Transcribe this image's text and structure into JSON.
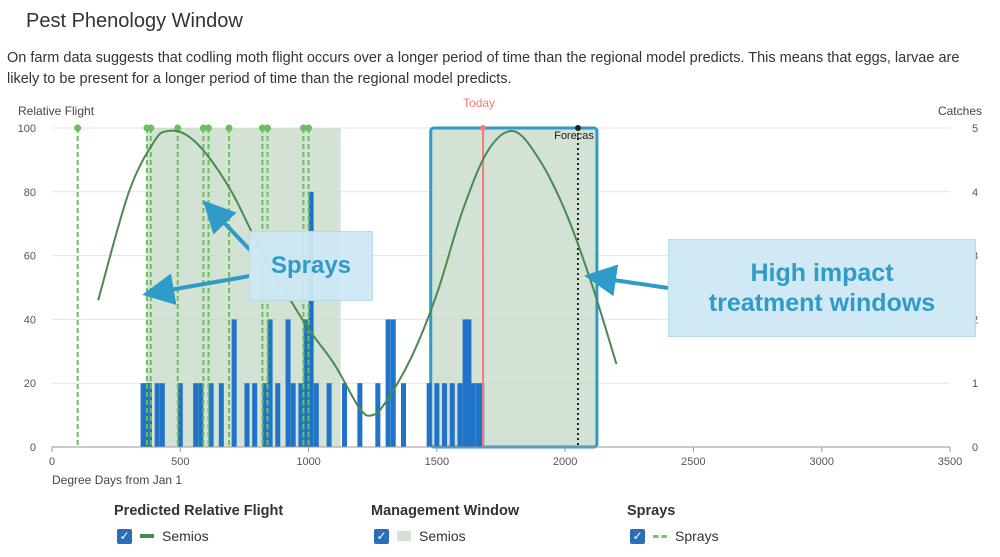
{
  "page": {
    "title": "Pest Phenology Window",
    "description": "On farm data suggests that codling moth flight occurs over a longer period of time than the regional model predicts. This means that eggs, larvae are likely to be present for a longer period of time than the regional model predicts."
  },
  "callouts": {
    "sprays": "Sprays",
    "treatment": "High impact treatment windows"
  },
  "legend": {
    "groups": [
      {
        "title": "Predicted Relative Flight",
        "item": "Semios",
        "color": "#4a8a52",
        "style": "solid"
      },
      {
        "title": "Management Window",
        "item": "Semios",
        "color": "#d4e2d6",
        "style": "block"
      },
      {
        "title": "Sprays",
        "item": "Sprays",
        "color": "#7cc46c",
        "style": "dashed"
      }
    ]
  },
  "chart_data": {
    "type": "line",
    "xlabel": "Degree Days from Jan 1",
    "ylabel": "Relative Flight",
    "y2label": "Catches",
    "xlim": [
      0,
      3500
    ],
    "ylim": [
      0,
      100
    ],
    "y2lim": [
      0,
      5
    ],
    "x_ticks": [
      0,
      500,
      1000,
      1500,
      2000,
      2500,
      3000,
      3500
    ],
    "y_ticks": [
      0,
      20,
      40,
      60,
      80,
      100
    ],
    "y2_ticks": [
      0,
      1,
      2,
      3,
      4,
      5
    ],
    "grid": true,
    "today": {
      "label": "Today",
      "x": 1680
    },
    "forecast": {
      "label": "Forecas",
      "x": 2050
    },
    "management_windows": [
      {
        "start": 370,
        "end": 1125
      },
      {
        "start": 1480,
        "end": 2120
      }
    ],
    "predicted_flight": [
      [
        180,
        46
      ],
      [
        300,
        80
      ],
      [
        400,
        96
      ],
      [
        450,
        99
      ],
      [
        520,
        98
      ],
      [
        600,
        92
      ],
      [
        700,
        80
      ],
      [
        800,
        64
      ],
      [
        900,
        50
      ],
      [
        1000,
        37
      ],
      [
        1100,
        26
      ],
      [
        1200,
        12
      ],
      [
        1250,
        10
      ],
      [
        1300,
        14
      ],
      [
        1400,
        28
      ],
      [
        1500,
        48
      ],
      [
        1600,
        74
      ],
      [
        1700,
        93
      ],
      [
        1800,
        99
      ],
      [
        1900,
        90
      ],
      [
        2000,
        74
      ],
      [
        2100,
        52
      ],
      [
        2200,
        26
      ]
    ],
    "sprays_x": [
      100,
      370,
      385,
      490,
      590,
      610,
      690,
      820,
      840,
      980,
      1000
    ],
    "catches": [
      {
        "x": 355,
        "v": 1
      },
      {
        "x": 368,
        "v": 1
      },
      {
        "x": 380,
        "v": 1
      },
      {
        "x": 410,
        "v": 1
      },
      {
        "x": 430,
        "v": 1
      },
      {
        "x": 500,
        "v": 1
      },
      {
        "x": 560,
        "v": 1
      },
      {
        "x": 580,
        "v": 1
      },
      {
        "x": 620,
        "v": 1
      },
      {
        "x": 660,
        "v": 1
      },
      {
        "x": 710,
        "v": 2
      },
      {
        "x": 760,
        "v": 1
      },
      {
        "x": 790,
        "v": 1
      },
      {
        "x": 830,
        "v": 1
      },
      {
        "x": 850,
        "v": 2
      },
      {
        "x": 880,
        "v": 1
      },
      {
        "x": 920,
        "v": 2
      },
      {
        "x": 940,
        "v": 1
      },
      {
        "x": 970,
        "v": 1
      },
      {
        "x": 990,
        "v": 2
      },
      {
        "x": 1010,
        "v": 4
      },
      {
        "x": 1030,
        "v": 1
      },
      {
        "x": 1080,
        "v": 1
      },
      {
        "x": 1140,
        "v": 1
      },
      {
        "x": 1200,
        "v": 1
      },
      {
        "x": 1270,
        "v": 1
      },
      {
        "x": 1310,
        "v": 2
      },
      {
        "x": 1330,
        "v": 2
      },
      {
        "x": 1370,
        "v": 1
      },
      {
        "x": 1470,
        "v": 1
      },
      {
        "x": 1500,
        "v": 1
      },
      {
        "x": 1530,
        "v": 1
      },
      {
        "x": 1560,
        "v": 1
      },
      {
        "x": 1590,
        "v": 1
      },
      {
        "x": 1610,
        "v": 2
      },
      {
        "x": 1625,
        "v": 2
      },
      {
        "x": 1640,
        "v": 1
      },
      {
        "x": 1660,
        "v": 1
      },
      {
        "x": 1675,
        "v": 1
      }
    ]
  }
}
